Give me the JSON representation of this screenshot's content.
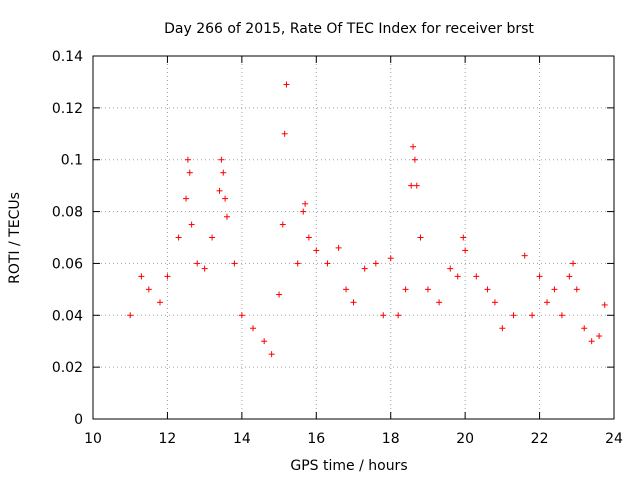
{
  "chart_data": {
    "type": "scatter",
    "title": "Day 266 of 2015, Rate Of TEC Index for receiver brst",
    "xlabel": "GPS time / hours",
    "ylabel": "ROTI / TECUs",
    "xlim": [
      10,
      24
    ],
    "ylim": [
      0,
      0.14
    ],
    "x_ticks": [
      10,
      12,
      14,
      16,
      18,
      20,
      22,
      24
    ],
    "x_tick_labels": [
      "10",
      "12",
      "14",
      "16",
      "18",
      "20",
      "22",
      "24"
    ],
    "y_ticks": [
      0,
      0.02,
      0.04,
      0.06,
      0.08,
      0.1,
      0.12,
      0.14
    ],
    "y_tick_labels": [
      "0",
      "0.02",
      "0.04",
      "0.06",
      "0.08",
      "0.1",
      "0.12",
      "0.14"
    ],
    "grid": true,
    "marker": "+",
    "color": "#ff0000",
    "series": [
      {
        "name": "ROTI",
        "x": [
          11.0,
          11.3,
          11.5,
          11.8,
          12.0,
          12.3,
          12.5,
          12.55,
          12.6,
          12.65,
          12.8,
          13.0,
          13.2,
          13.4,
          13.45,
          13.5,
          13.55,
          13.6,
          13.8,
          14.0,
          14.3,
          14.6,
          14.8,
          15.0,
          15.1,
          15.15,
          15.2,
          15.5,
          15.65,
          15.7,
          15.8,
          16.0,
          16.3,
          16.6,
          16.8,
          17.0,
          17.3,
          17.6,
          17.8,
          18.0,
          18.2,
          18.4,
          18.55,
          18.6,
          18.65,
          18.7,
          18.8,
          19.0,
          19.3,
          19.6,
          19.8,
          19.95,
          20.0,
          20.3,
          20.6,
          20.8,
          21.0,
          21.3,
          21.6,
          21.8,
          22.0,
          22.2,
          22.4,
          22.6,
          22.8,
          22.9,
          23.0,
          23.2,
          23.4,
          23.6,
          23.75
        ],
        "y": [
          0.04,
          0.055,
          0.05,
          0.045,
          0.055,
          0.07,
          0.085,
          0.1,
          0.095,
          0.075,
          0.06,
          0.058,
          0.07,
          0.088,
          0.1,
          0.095,
          0.085,
          0.078,
          0.06,
          0.04,
          0.035,
          0.03,
          0.025,
          0.048,
          0.075,
          0.11,
          0.129,
          0.06,
          0.08,
          0.083,
          0.07,
          0.065,
          0.06,
          0.066,
          0.05,
          0.045,
          0.058,
          0.06,
          0.04,
          0.062,
          0.04,
          0.05,
          0.09,
          0.105,
          0.1,
          0.09,
          0.07,
          0.05,
          0.045,
          0.058,
          0.055,
          0.07,
          0.065,
          0.055,
          0.05,
          0.045,
          0.035,
          0.04,
          0.063,
          0.04,
          0.055,
          0.045,
          0.05,
          0.04,
          0.055,
          0.06,
          0.05,
          0.035,
          0.03,
          0.032,
          0.044
        ]
      }
    ]
  }
}
